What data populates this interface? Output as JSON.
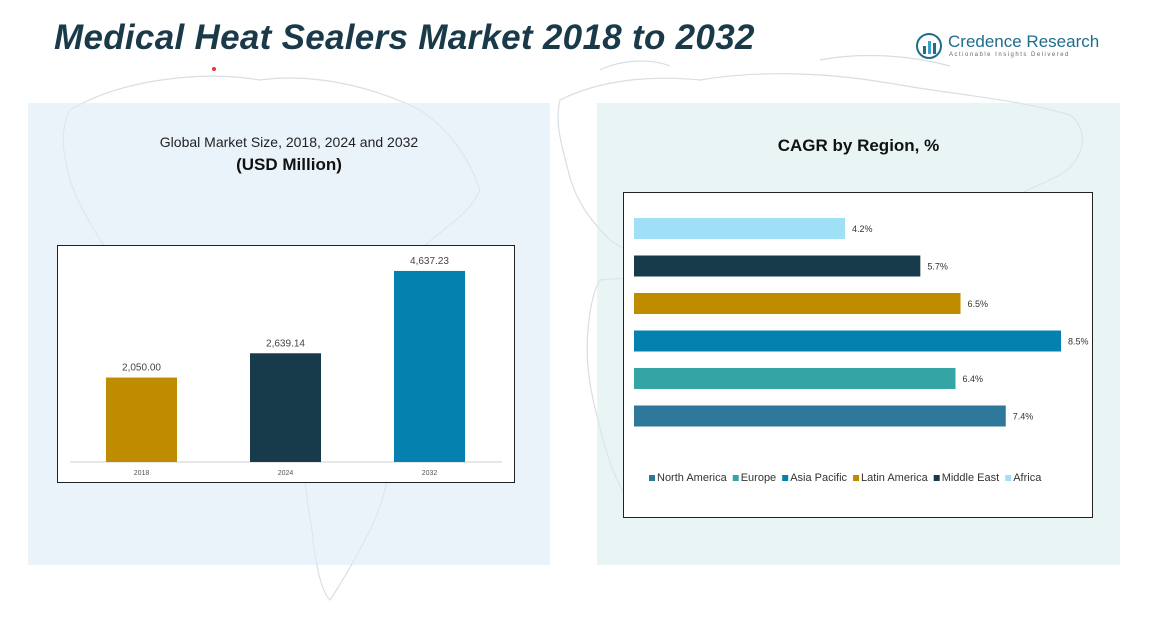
{
  "header": {
    "title": "Medical Heat Sealers Market 2018 to 2032",
    "logo_name": "Credence Research",
    "logo_tagline": "Actionable Insights Delivered"
  },
  "left_panel": {
    "title_line1": "Global Market Size, 2018, 2024 and 2032",
    "title_line2": "(USD Million)"
  },
  "right_panel": {
    "title": "CAGR by Region, %"
  },
  "colors": {
    "title": "#1a3a4a",
    "panel_left_bg": "#dfebf7",
    "panel_right_bg": "#d7eced"
  },
  "chart_data": [
    {
      "type": "bar",
      "title": "Global Market Size, 2018, 2024 and 2032",
      "ylabel": "USD Million",
      "categories": [
        "2018",
        "2024",
        "2032"
      ],
      "values": [
        2050.0,
        2639.14,
        4637.23
      ],
      "value_labels": [
        "2,050.00",
        "2,639.14",
        "4,637.23"
      ],
      "colors": [
        "#bf8c00",
        "#173b4a",
        "#0581b0"
      ],
      "ylim": [
        0,
        5000
      ],
      "grid": false,
      "legend": "none"
    },
    {
      "type": "bar",
      "orientation": "horizontal",
      "title": "CAGR by Region, %",
      "categories": [
        "Africa",
        "Middle East",
        "Latin America",
        "Asia Pacific",
        "Europe",
        "North America"
      ],
      "values": [
        4.2,
        5.7,
        6.5,
        8.5,
        6.4,
        7.4
      ],
      "value_labels": [
        "4.2%",
        "5.7%",
        "6.5%",
        "8.5%",
        "6.4%",
        "7.4%"
      ],
      "colors": [
        "#9fe0f7",
        "#173b4a",
        "#bf8c00",
        "#0581b0",
        "#35a4a4",
        "#2e7899"
      ],
      "xlim": [
        0,
        9
      ],
      "grid": false,
      "legend": "bottom",
      "legend_order": [
        "North America",
        "Europe",
        "Asia Pacific",
        "Latin America",
        "Middle East",
        "Africa"
      ]
    }
  ]
}
